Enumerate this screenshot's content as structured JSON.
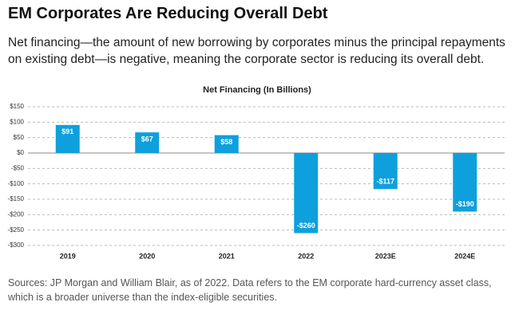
{
  "title": "EM Corporates Are Reducing Overall Debt",
  "subtitle": [
    "Net financing—the amount of new borrowing by corporates minus the principal repayments",
    "on existing debt—is negative, meaning the corporate sector is reducing its overall debt."
  ],
  "source": [
    "Sources: JP Morgan and William Blair, as of 2022. Data refers to the EM corporate hard-currency asset class,",
    "which is a broader universe than the index-eligible securities."
  ],
  "chart_data": {
    "type": "bar",
    "title": "Net Financing (In Billions)",
    "categories": [
      "2019",
      "2020",
      "2021",
      "2022",
      "2023E",
      "2024E"
    ],
    "values": [
      91,
      67,
      58,
      -260,
      -117,
      -190
    ],
    "value_labels": [
      "$91",
      "$67",
      "$58",
      "-$260",
      "-$117",
      "-$190"
    ],
    "color": "#0ea0dd",
    "ylim": [
      -300,
      150
    ],
    "yticks": [
      {
        "value": 150,
        "label": "$150"
      },
      {
        "value": 100,
        "label": "$100"
      },
      {
        "value": 50,
        "label": "$50"
      },
      {
        "value": 0,
        "label": "$0"
      },
      {
        "value": -50,
        "label": "-$50"
      },
      {
        "value": -100,
        "label": "-$100"
      },
      {
        "value": -150,
        "label": "-$150"
      },
      {
        "value": -200,
        "label": "-$200"
      },
      {
        "value": -250,
        "label": "-$250"
      },
      {
        "value": -300,
        "label": "-$300"
      }
    ],
    "grid": true
  }
}
